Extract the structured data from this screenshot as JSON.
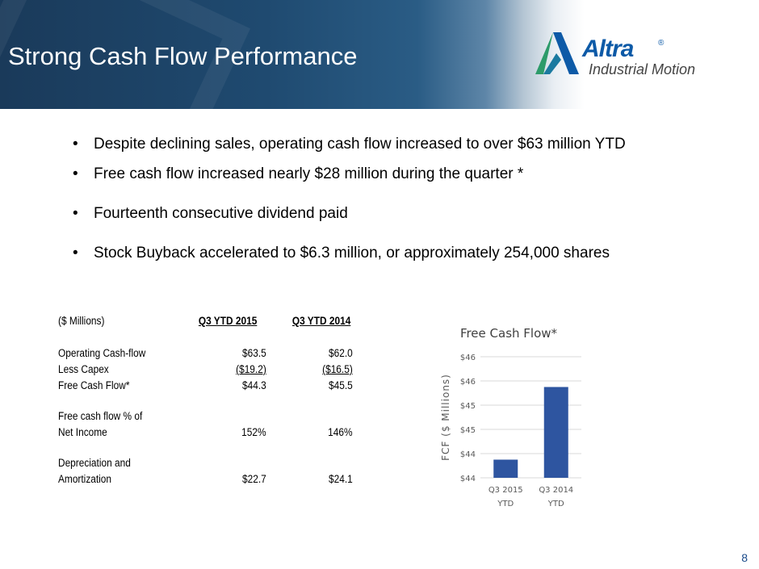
{
  "slide": {
    "title": "Strong Cash Flow Performance",
    "page_number": "8"
  },
  "logo": {
    "name": "Altra",
    "registered": "®",
    "subtitle": "Industrial Motion"
  },
  "bullets": [
    "Despite declining sales, operating cash flow increased to over $63 million YTD",
    "Free cash flow increased nearly $28 million during the quarter *",
    "Fourteenth consecutive dividend paid",
    "Stock Buyback accelerated to $6.3 million, or approximately 254,000 shares"
  ],
  "table": {
    "unit_label": "($ Millions)",
    "col1_header": "Q3 YTD 2015",
    "col2_header": "Q3 YTD 2014",
    "rows": [
      {
        "label": "Operating Cash-flow",
        "v1": "$63.5",
        "v2": "$62.0"
      },
      {
        "label": "Less Capex",
        "v1": "($19.2)",
        "v2": "($16.5)"
      },
      {
        "label": "Free Cash Flow*",
        "v1": "$44.3",
        "v2": "$45.5"
      },
      {
        "label": "Free cash flow % of",
        "v1": "",
        "v2": ""
      },
      {
        "label": "Net Income",
        "v1": "152%",
        "v2": "146%"
      },
      {
        "label": "Depreciation and",
        "v1": "",
        "v2": ""
      },
      {
        "label": "Amortization",
        "v1": "$22.7",
        "v2": "$24.1"
      }
    ]
  },
  "chart_data": {
    "type": "bar",
    "title": "Free Cash Flow*",
    "ylabel": "FCF ($ Millions)",
    "xlabel": "",
    "categories": [
      [
        "Q3 2015",
        "YTD"
      ],
      [
        "Q3 2014",
        "YTD"
      ]
    ],
    "values": [
      44.3,
      45.5
    ],
    "ylim": [
      44,
      46
    ],
    "yticks": [
      44,
      44.4,
      44.8,
      45.2,
      45.6,
      46
    ],
    "ytick_labels": [
      "$44",
      "$44",
      "$45",
      "$45",
      "$46",
      "$46"
    ],
    "bar_color": "#2e55a0",
    "grid": true
  },
  "colors": {
    "header_dark": "#1a3a5a",
    "header_mid": "#2a5c85",
    "logo_blue": "#0d5aa7",
    "logo_green": "#2d9b6a",
    "page_number": "#1a4a8a"
  }
}
